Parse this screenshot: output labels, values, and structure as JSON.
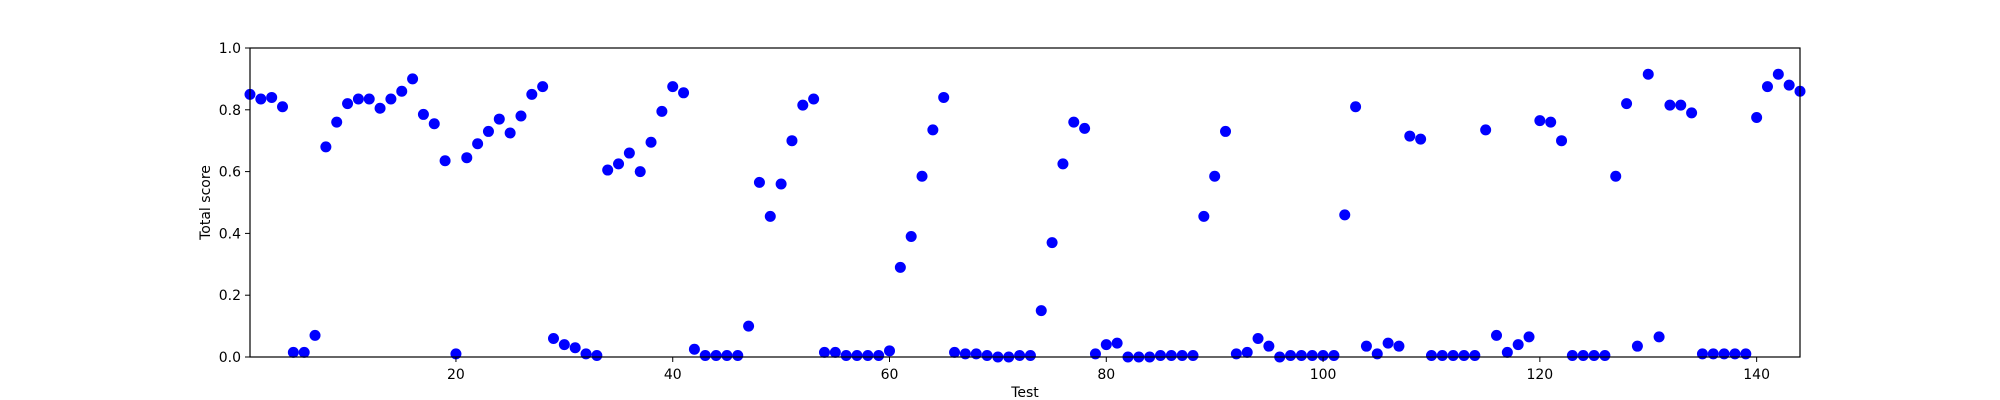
{
  "chart_data": {
    "type": "scatter",
    "title": "",
    "xlabel": "Test",
    "ylabel": "Total score",
    "xlim": [
      1,
      144
    ],
    "ylim": [
      0.0,
      1.0
    ],
    "x_ticks": [
      20,
      40,
      60,
      80,
      100,
      120,
      140
    ],
    "y_ticks": [
      0.0,
      0.2,
      0.4,
      0.6,
      0.8,
      1.0
    ],
    "y_tick_labels": [
      "0.0",
      "0.2",
      "0.4",
      "0.6",
      "0.8",
      "1.0"
    ],
    "grid": false,
    "marker_color": "#0000ff",
    "series": [
      {
        "points": [
          [
            1,
            0.85
          ],
          [
            2,
            0.835
          ],
          [
            3,
            0.84
          ],
          [
            4,
            0.81
          ],
          [
            5,
            0.015
          ],
          [
            6,
            0.015
          ],
          [
            7,
            0.07
          ],
          [
            8,
            0.68
          ],
          [
            9,
            0.76
          ],
          [
            10,
            0.82
          ],
          [
            11,
            0.835
          ],
          [
            12,
            0.835
          ],
          [
            13,
            0.805
          ],
          [
            14,
            0.835
          ],
          [
            15,
            0.86
          ],
          [
            16,
            0.9
          ],
          [
            17,
            0.785
          ],
          [
            18,
            0.755
          ],
          [
            19,
            0.635
          ],
          [
            20,
            0.01
          ],
          [
            21,
            0.645
          ],
          [
            22,
            0.69
          ],
          [
            23,
            0.73
          ],
          [
            24,
            0.77
          ],
          [
            25,
            0.725
          ],
          [
            26,
            0.78
          ],
          [
            27,
            0.85
          ],
          [
            28,
            0.875
          ],
          [
            29,
            0.06
          ],
          [
            30,
            0.04
          ],
          [
            31,
            0.03
          ],
          [
            32,
            0.01
          ],
          [
            33,
            0.005
          ],
          [
            34,
            0.605
          ],
          [
            35,
            0.625
          ],
          [
            36,
            0.66
          ],
          [
            37,
            0.6
          ],
          [
            38,
            0.695
          ],
          [
            39,
            0.795
          ],
          [
            40,
            0.875
          ],
          [
            41,
            0.855
          ],
          [
            42,
            0.025
          ],
          [
            43,
            0.005
          ],
          [
            44,
            0.005
          ],
          [
            45,
            0.005
          ],
          [
            46,
            0.005
          ],
          [
            47,
            0.1
          ],
          [
            48,
            0.565
          ],
          [
            49,
            0.455
          ],
          [
            50,
            0.56
          ],
          [
            51,
            0.7
          ],
          [
            52,
            0.815
          ],
          [
            53,
            0.835
          ],
          [
            54,
            0.015
          ],
          [
            55,
            0.015
          ],
          [
            56,
            0.005
          ],
          [
            57,
            0.005
          ],
          [
            58,
            0.005
          ],
          [
            59,
            0.005
          ],
          [
            60,
            0.02
          ],
          [
            61,
            0.29
          ],
          [
            62,
            0.39
          ],
          [
            63,
            0.585
          ],
          [
            64,
            0.735
          ],
          [
            65,
            0.84
          ],
          [
            66,
            0.015
          ],
          [
            67,
            0.01
          ],
          [
            68,
            0.01
          ],
          [
            69,
            0.005
          ],
          [
            70,
            0.0
          ],
          [
            71,
            0.0
          ],
          [
            72,
            0.005
          ],
          [
            73,
            0.005
          ],
          [
            74,
            0.15
          ],
          [
            75,
            0.37
          ],
          [
            76,
            0.625
          ],
          [
            77,
            0.76
          ],
          [
            78,
            0.74
          ],
          [
            79,
            0.01
          ],
          [
            80,
            0.04
          ],
          [
            81,
            0.045
          ],
          [
            82,
            0.0
          ],
          [
            83,
            0.0
          ],
          [
            84,
            0.0
          ],
          [
            85,
            0.005
          ],
          [
            86,
            0.005
          ],
          [
            87,
            0.005
          ],
          [
            88,
            0.005
          ],
          [
            89,
            0.455
          ],
          [
            90,
            0.585
          ],
          [
            91,
            0.73
          ],
          [
            92,
            0.01
          ],
          [
            93,
            0.015
          ],
          [
            94,
            0.06
          ],
          [
            95,
            0.035
          ],
          [
            96,
            0.0
          ],
          [
            97,
            0.005
          ],
          [
            98,
            0.005
          ],
          [
            99,
            0.005
          ],
          [
            100,
            0.005
          ],
          [
            101,
            0.005
          ],
          [
            102,
            0.46
          ],
          [
            103,
            0.81
          ],
          [
            104,
            0.035
          ],
          [
            105,
            0.01
          ],
          [
            106,
            0.045
          ],
          [
            107,
            0.035
          ],
          [
            108,
            0.715
          ],
          [
            109,
            0.705
          ],
          [
            110,
            0.005
          ],
          [
            111,
            0.005
          ],
          [
            112,
            0.005
          ],
          [
            113,
            0.005
          ],
          [
            114,
            0.005
          ],
          [
            115,
            0.735
          ],
          [
            116,
            0.07
          ],
          [
            117,
            0.015
          ],
          [
            118,
            0.04
          ],
          [
            119,
            0.065
          ],
          [
            120,
            0.765
          ],
          [
            121,
            0.76
          ],
          [
            122,
            0.7
          ],
          [
            123,
            0.005
          ],
          [
            124,
            0.005
          ],
          [
            125,
            0.005
          ],
          [
            126,
            0.005
          ],
          [
            127,
            0.585
          ],
          [
            128,
            0.82
          ],
          [
            129,
            0.035
          ],
          [
            130,
            0.915
          ],
          [
            131,
            0.065
          ],
          [
            132,
            0.815
          ],
          [
            133,
            0.815
          ],
          [
            134,
            0.79
          ],
          [
            135,
            0.01
          ],
          [
            136,
            0.01
          ],
          [
            137,
            0.01
          ],
          [
            138,
            0.01
          ],
          [
            139,
            0.01
          ],
          [
            140,
            0.775
          ],
          [
            141,
            0.875
          ],
          [
            142,
            0.915
          ],
          [
            143,
            0.88
          ],
          [
            144,
            0.86
          ]
        ]
      }
    ]
  }
}
